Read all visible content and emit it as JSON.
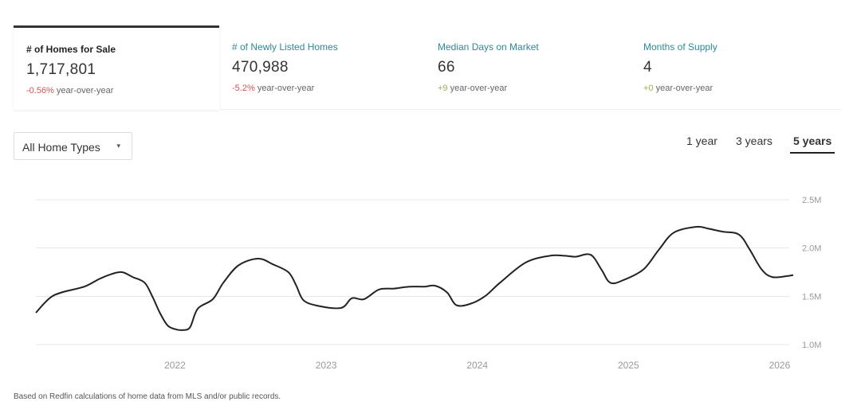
{
  "tabs": [
    {
      "title": "# of Homes for Sale",
      "value": "1,717,801",
      "change": "-0.56%",
      "change_suffix": "year-over-year",
      "active": true
    },
    {
      "title": "# of Newly Listed Homes",
      "value": "470,988",
      "change": "-5.2%",
      "change_suffix": "year-over-year",
      "active": false
    },
    {
      "title": "Median Days on Market",
      "value": "66",
      "change": "+9",
      "change_suffix": "year-over-year",
      "active": false
    },
    {
      "title": "Months of Supply",
      "value": "4",
      "change": "+0",
      "change_suffix": "year-over-year",
      "active": false
    }
  ],
  "filter": {
    "label": "All Home Types"
  },
  "ranges": [
    "1 year",
    "3 years",
    "5 years"
  ],
  "selected_range": "5 years",
  "footnote": "Based on Redfin calculations of home data from MLS and/or public records.",
  "colors": {
    "accent": "#2b8a9a",
    "negative": "#d9534f",
    "positive": "#9ab04a",
    "line": "#222222",
    "grid": "#e6e6e6"
  },
  "chart_data": {
    "type": "line",
    "title": "",
    "xlabel": "",
    "ylabel": "",
    "x_ticks": [
      "2022",
      "2023",
      "2024",
      "2025",
      "2026"
    ],
    "y_ticks": [
      "1.0M",
      "1.5M",
      "2.0M",
      "2.5M"
    ],
    "ylim": [
      1000000,
      2500000
    ],
    "xlim": [
      2021.08,
      2026.09
    ],
    "grid": true,
    "legend": "none",
    "series": [
      {
        "values": [
          [
            2021.08,
            1330000
          ],
          [
            2021.17,
            1480000
          ],
          [
            2021.25,
            1540000
          ],
          [
            2021.4,
            1600000
          ],
          [
            2021.5,
            1680000
          ],
          [
            2021.58,
            1730000
          ],
          [
            2021.65,
            1750000
          ],
          [
            2021.72,
            1700000
          ],
          [
            2021.8,
            1640000
          ],
          [
            2021.85,
            1500000
          ],
          [
            2021.9,
            1330000
          ],
          [
            2021.95,
            1200000
          ],
          [
            2022.0,
            1160000
          ],
          [
            2022.05,
            1150000
          ],
          [
            2022.1,
            1180000
          ],
          [
            2022.15,
            1370000
          ],
          [
            2022.25,
            1470000
          ],
          [
            2022.32,
            1640000
          ],
          [
            2022.42,
            1820000
          ],
          [
            2022.55,
            1890000
          ],
          [
            2022.65,
            1830000
          ],
          [
            2022.75,
            1750000
          ],
          [
            2022.8,
            1620000
          ],
          [
            2022.85,
            1460000
          ],
          [
            2022.95,
            1400000
          ],
          [
            2023.1,
            1380000
          ],
          [
            2023.17,
            1480000
          ],
          [
            2023.25,
            1470000
          ],
          [
            2023.35,
            1570000
          ],
          [
            2023.45,
            1580000
          ],
          [
            2023.55,
            1600000
          ],
          [
            2023.65,
            1600000
          ],
          [
            2023.72,
            1610000
          ],
          [
            2023.8,
            1540000
          ],
          [
            2023.86,
            1410000
          ],
          [
            2023.95,
            1420000
          ],
          [
            2024.05,
            1500000
          ],
          [
            2024.15,
            1640000
          ],
          [
            2024.32,
            1850000
          ],
          [
            2024.48,
            1920000
          ],
          [
            2024.58,
            1920000
          ],
          [
            2024.65,
            1910000
          ],
          [
            2024.75,
            1930000
          ],
          [
            2024.82,
            1780000
          ],
          [
            2024.88,
            1640000
          ],
          [
            2024.97,
            1670000
          ],
          [
            2025.1,
            1780000
          ],
          [
            2025.2,
            1980000
          ],
          [
            2025.3,
            2160000
          ],
          [
            2025.45,
            2220000
          ],
          [
            2025.53,
            2200000
          ],
          [
            2025.62,
            2170000
          ],
          [
            2025.73,
            2140000
          ],
          [
            2025.8,
            1990000
          ],
          [
            2025.88,
            1780000
          ],
          [
            2025.95,
            1700000
          ],
          [
            2026.05,
            1710000
          ],
          [
            2026.09,
            1720000
          ]
        ]
      }
    ]
  }
}
